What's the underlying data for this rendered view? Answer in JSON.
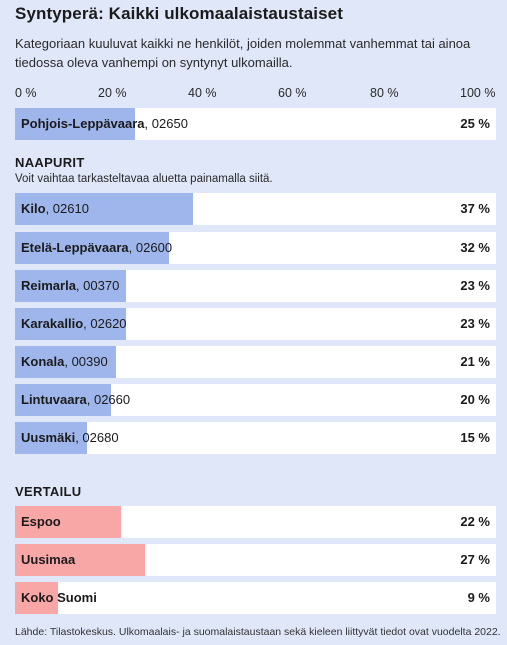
{
  "title": "Syntyperä: Kaikki ulkomaalaistaustaiset",
  "subtitle": "Kategoriaan kuuluvat kaikki ne henkilöt, joiden molemmat vanhemmat tai ainoa tiedossa oleva vanhempi on syntynyt ulkomailla.",
  "axis_ticks": [
    "0 %",
    "20 %",
    "40 %",
    "60 %",
    "80 %",
    "100 %"
  ],
  "neighbors_heading": "NAAPURIT",
  "neighbors_hint": "Voit vaihtaa tarkasteltavaa aluetta painamalla siitä.",
  "comparison_heading": "VERTAILU",
  "footer": "Lähde: Tilastokeskus. Ulkomaalais- ja suomalaistaustaan sekä kieleen liittyvät tiedot ovat vuodelta 2022.",
  "colors": {
    "area_bar": "#9eb6ec",
    "comparison_bar": "#f9a6a6",
    "background": "#dfe7f8"
  },
  "chart_data": {
    "type": "bar",
    "orientation": "horizontal",
    "xlim": [
      0,
      100
    ],
    "selected": {
      "name": "Pohjois-Leppävaara",
      "code": ", 02650",
      "value": 25,
      "label": "25 %"
    },
    "neighbors": [
      {
        "name": "Kilo",
        "code": ", 02610",
        "value": 37,
        "label": "37 %"
      },
      {
        "name": "Etelä-Leppävaara",
        "code": ", 02600",
        "value": 32,
        "label": "32 %"
      },
      {
        "name": "Reimarla",
        "code": ", 00370",
        "value": 23,
        "label": "23 %"
      },
      {
        "name": "Karakallio",
        "code": ", 02620",
        "value": 23,
        "label": "23 %"
      },
      {
        "name": "Konala",
        "code": ", 00390",
        "value": 21,
        "label": "21 %"
      },
      {
        "name": "Lintuvaara",
        "code": ", 02660",
        "value": 20,
        "label": "20 %"
      },
      {
        "name": "Uusmäki",
        "code": ", 02680",
        "value": 15,
        "label": "15 %"
      }
    ],
    "comparison": [
      {
        "name": "Espoo",
        "value": 22,
        "label": "22 %"
      },
      {
        "name": "Uusimaa",
        "value": 27,
        "label": "27 %"
      },
      {
        "name": "Koko Suomi",
        "value": 9,
        "label": "9 %"
      }
    ]
  }
}
